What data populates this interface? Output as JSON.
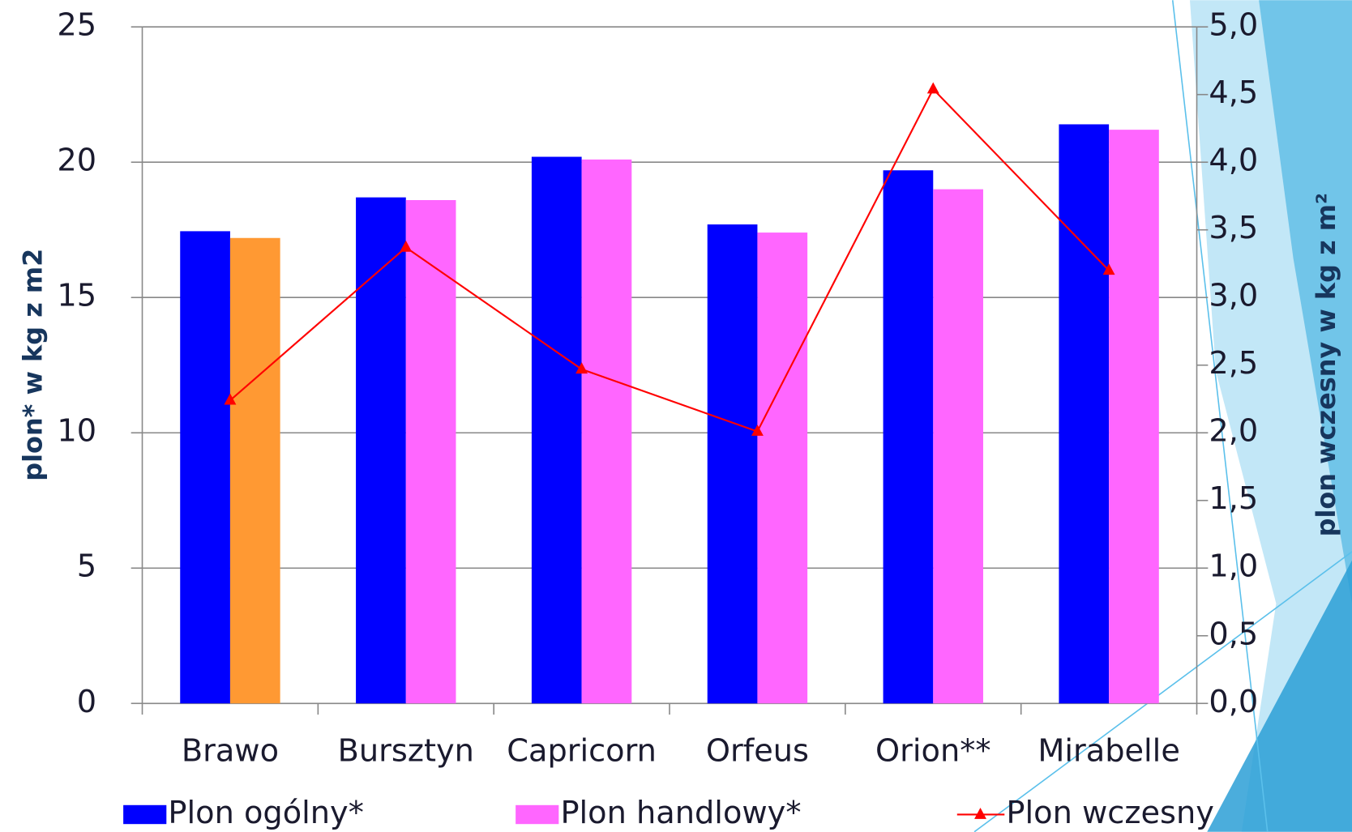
{
  "chart_data": {
    "type": "bar",
    "categories": [
      "Brawo",
      "Bursztyn",
      "Capricorn",
      "Orfeus",
      "Orion**",
      "Mirabelle"
    ],
    "ylabel": "plon*  w kg z m2",
    "y2label": "plon wczesny w kg z m²",
    "ylim": [
      0,
      25
    ],
    "yticks": [
      0,
      5,
      10,
      15,
      20,
      25
    ],
    "y2lim": [
      0,
      5
    ],
    "y2ticks": [
      {
        "value": 0,
        "label": "0,0"
      },
      {
        "value": 0.5,
        "label": "0,5"
      },
      {
        "value": 1,
        "label": "1,0"
      },
      {
        "value": 1.5,
        "label": "1,5"
      },
      {
        "value": 2,
        "label": "2,0"
      },
      {
        "value": 2.5,
        "label": "2,5"
      },
      {
        "value": 3,
        "label": "3,0"
      },
      {
        "value": 3.5,
        "label": "3,5"
      },
      {
        "value": 4,
        "label": "4,0"
      },
      {
        "value": 4.5,
        "label": "4,5"
      },
      {
        "value": 5,
        "label": "5,0"
      }
    ],
    "grid": true,
    "series": [
      {
        "name": "Plon ogólny*",
        "type": "bar",
        "color": "#0000ff",
        "values": [
          17.45,
          18.7,
          20.2,
          17.7,
          19.7,
          21.4
        ]
      },
      {
        "name": "Plon handlowy*",
        "type": "bar",
        "color": "#ff66ff",
        "colors": [
          "#ff9933",
          "#ff66ff",
          "#ff66ff",
          "#ff66ff",
          "#ff66ff",
          "#ff66ff"
        ],
        "values": [
          17.2,
          18.6,
          20.1,
          17.4,
          19.0,
          21.2
        ]
      },
      {
        "name": "Plon wczesny",
        "type": "line",
        "axis": "y2",
        "color": "#ff0000",
        "values": [
          2.24,
          3.37,
          2.47,
          2.01,
          4.54,
          3.2
        ]
      }
    ]
  }
}
